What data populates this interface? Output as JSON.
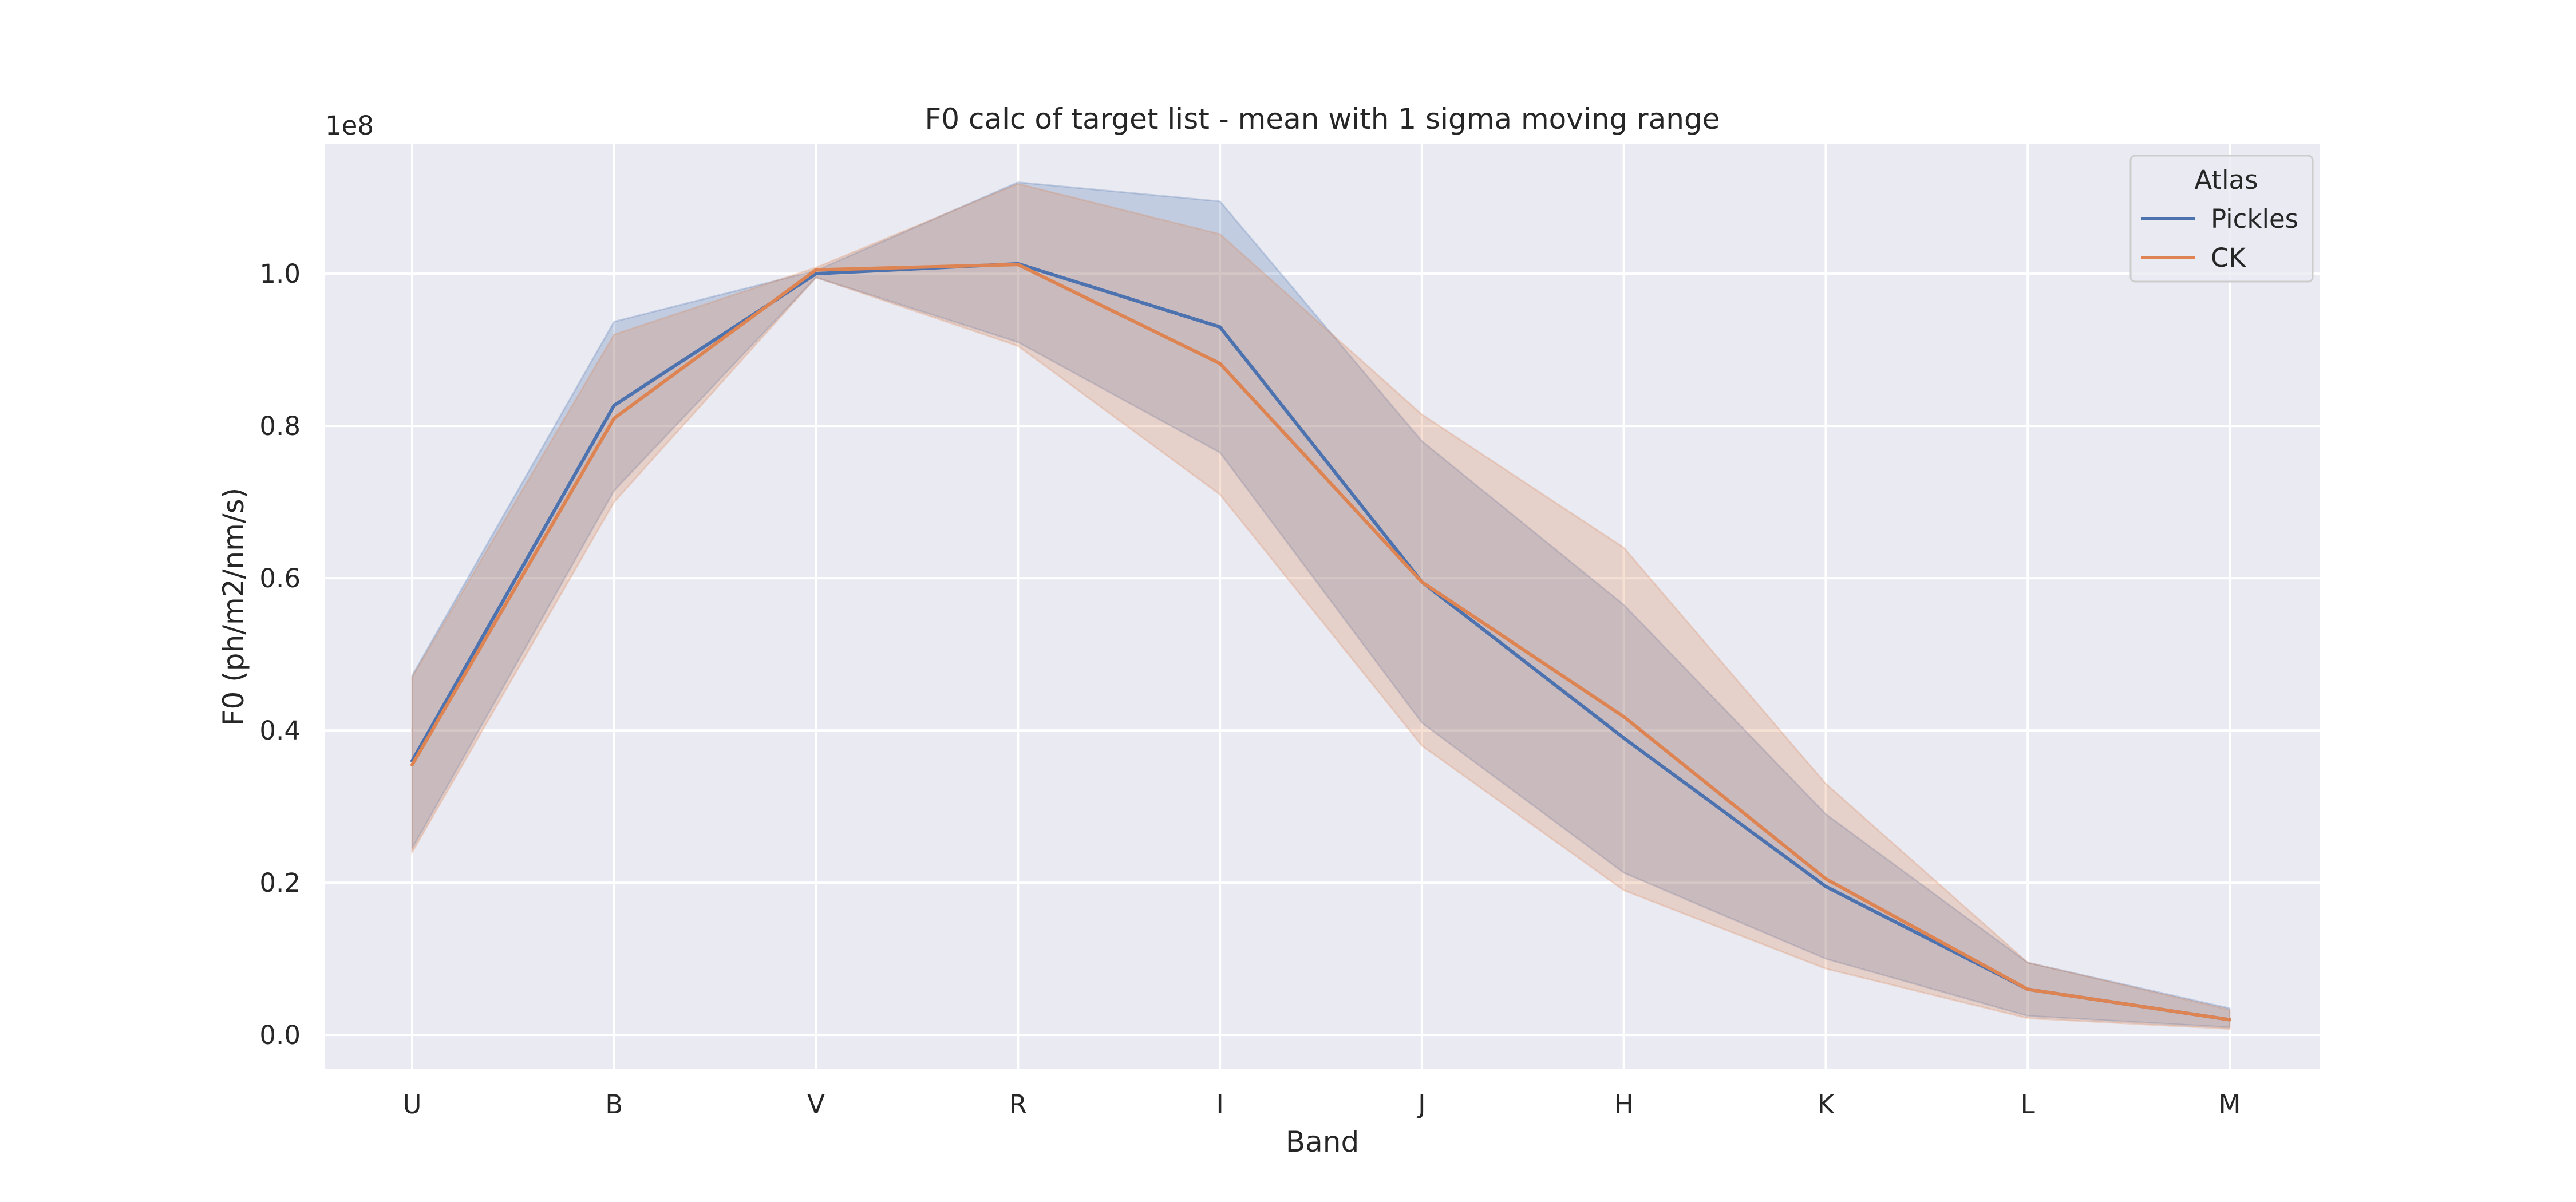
{
  "chart_data": {
    "type": "line",
    "title": "F0 calc of target list - mean with 1 sigma moving range",
    "xlabel": "Band",
    "ylabel": "F0 (ph/m2/nm/s)",
    "y_offset_label": "1e8",
    "categories": [
      "U",
      "B",
      "V",
      "R",
      "I",
      "J",
      "H",
      "K",
      "L",
      "M"
    ],
    "y_scale_factor": 100000000,
    "ylim": [
      -0.045,
      1.17
    ],
    "yticks": [
      0.0,
      0.2,
      0.4,
      0.6,
      0.8,
      1.0
    ],
    "ytick_labels": [
      "0.0",
      "0.2",
      "0.4",
      "0.6",
      "0.8",
      "1.0"
    ],
    "grid": true,
    "legend": {
      "title": "Atlas",
      "placement": "top-right"
    },
    "series": [
      {
        "name": "Pickles",
        "color": "#4c72b0",
        "values": [
          0.36,
          0.827,
          1.0,
          1.013,
          0.93,
          0.595,
          0.39,
          0.195,
          0.06,
          0.02
        ],
        "lower": [
          0.245,
          0.715,
          0.995,
          0.91,
          0.765,
          0.41,
          0.213,
          0.1,
          0.025,
          0.01
        ],
        "upper": [
          0.472,
          0.937,
          1.004,
          1.12,
          1.095,
          0.78,
          0.565,
          0.29,
          0.095,
          0.035
        ]
      },
      {
        "name": "CK",
        "color": "#dd8452",
        "values": [
          0.355,
          0.81,
          1.005,
          1.012,
          0.882,
          0.595,
          0.418,
          0.205,
          0.06,
          0.02
        ],
        "lower": [
          0.24,
          0.7,
          0.995,
          0.905,
          0.71,
          0.38,
          0.19,
          0.087,
          0.022,
          0.008
        ],
        "upper": [
          0.47,
          0.92,
          1.008,
          1.118,
          1.052,
          0.815,
          0.64,
          0.33,
          0.095,
          0.033
        ]
      }
    ]
  }
}
